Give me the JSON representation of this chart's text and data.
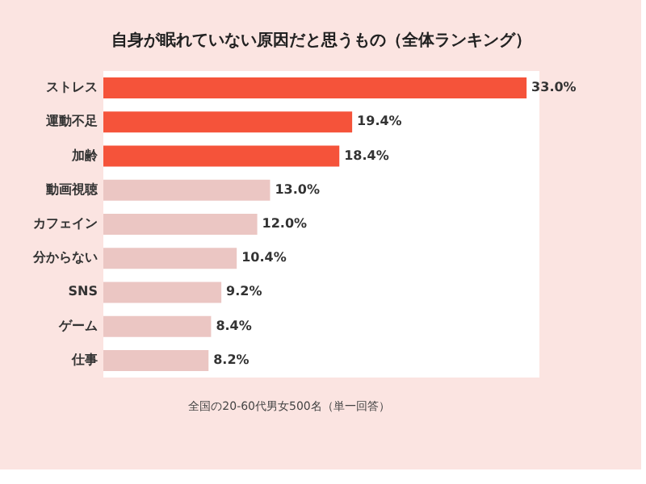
{
  "chart_data": {
    "type": "bar",
    "orientation": "horizontal",
    "title": "自身が眠れていない原因だと思うもの（全体ランキング）",
    "categories": [
      "ストレス",
      "運動不足",
      "加齢",
      "動画視聴",
      "カフェイン",
      "分からない",
      "SNS",
      "ゲーム",
      "仕事"
    ],
    "values": [
      33.0,
      19.4,
      18.4,
      13.0,
      12.0,
      10.4,
      9.2,
      8.4,
      8.2
    ],
    "value_labels": [
      "33.0%",
      "19.4%",
      "18.4%",
      "13.0%",
      "12.0%",
      "10.4%",
      "9.2%",
      "8.4%",
      "8.2%"
    ],
    "colors": [
      "#f5533a",
      "#f5533a",
      "#f5533a",
      "#ebc6c3",
      "#ebc6c3",
      "#ebc6c3",
      "#ebc6c3",
      "#ebc6c3",
      "#ebc6c3"
    ],
    "xlim": [
      0,
      34
    ],
    "tick_labels": "y",
    "annotations": [
      "全国の20-60代男女500名（単一回答）"
    ]
  }
}
